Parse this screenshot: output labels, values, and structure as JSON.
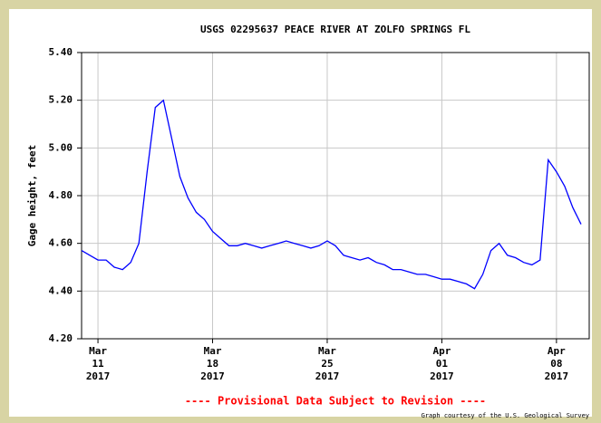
{
  "chart_data": {
    "type": "line",
    "title": "USGS 02295637 PEACE RIVER AT ZOLFO SPRINGS FL",
    "y_label": "Gage height, feet",
    "footer": "---- Provisional Data Subject to Revision ----",
    "credit": "Graph courtesy of the U.S. Geological Survey",
    "color": "#0000ff",
    "grid": true,
    "xlim": [
      "2017-03-10T00:00",
      "2017-04-10T00:00"
    ],
    "xticks": [
      {
        "value": "2017-03-11T00:00",
        "label": [
          "Mar",
          "11",
          "2017"
        ]
      },
      {
        "value": "2017-03-18T00:00",
        "label": [
          "Mar",
          "18",
          "2017"
        ]
      },
      {
        "value": "2017-03-25T00:00",
        "label": [
          "Mar",
          "25",
          "2017"
        ]
      },
      {
        "value": "2017-04-01T00:00",
        "label": [
          "Apr",
          "01",
          "2017"
        ]
      },
      {
        "value": "2017-04-08T00:00",
        "label": [
          "Apr",
          "08",
          "2017"
        ]
      }
    ],
    "ylim": [
      4.2,
      5.4
    ],
    "yticks": [
      {
        "value": 4.2,
        "label": "4.20"
      },
      {
        "value": 4.4,
        "label": "4.40"
      },
      {
        "value": 4.6,
        "label": "4.60"
      },
      {
        "value": 4.8,
        "label": "4.80"
      },
      {
        "value": 5.0,
        "label": "5.00"
      },
      {
        "value": 5.2,
        "label": "5.20"
      },
      {
        "value": 5.4,
        "label": "5.40"
      }
    ],
    "x": [
      "2017-03-10T00:00",
      "2017-03-10T12:00",
      "2017-03-11T00:00",
      "2017-03-11T12:00",
      "2017-03-12T00:00",
      "2017-03-12T12:00",
      "2017-03-13T00:00",
      "2017-03-13T12:00",
      "2017-03-14T00:00",
      "2017-03-14T12:00",
      "2017-03-15T00:00",
      "2017-03-15T12:00",
      "2017-03-16T00:00",
      "2017-03-16T12:00",
      "2017-03-17T00:00",
      "2017-03-17T12:00",
      "2017-03-18T00:00",
      "2017-03-18T12:00",
      "2017-03-19T00:00",
      "2017-03-19T12:00",
      "2017-03-20T00:00",
      "2017-03-20T12:00",
      "2017-03-21T00:00",
      "2017-03-21T12:00",
      "2017-03-22T00:00",
      "2017-03-22T12:00",
      "2017-03-23T00:00",
      "2017-03-23T12:00",
      "2017-03-24T00:00",
      "2017-03-24T12:00",
      "2017-03-25T00:00",
      "2017-03-25T12:00",
      "2017-03-26T00:00",
      "2017-03-26T12:00",
      "2017-03-27T00:00",
      "2017-03-27T12:00",
      "2017-03-28T00:00",
      "2017-03-28T12:00",
      "2017-03-29T00:00",
      "2017-03-29T12:00",
      "2017-03-30T00:00",
      "2017-03-30T12:00",
      "2017-03-31T00:00",
      "2017-03-31T12:00",
      "2017-04-01T00:00",
      "2017-04-01T12:00",
      "2017-04-02T00:00",
      "2017-04-02T12:00",
      "2017-04-03T00:00",
      "2017-04-03T12:00",
      "2017-04-04T00:00",
      "2017-04-04T12:00",
      "2017-04-05T00:00",
      "2017-04-05T12:00",
      "2017-04-06T00:00",
      "2017-04-06T12:00",
      "2017-04-07T00:00",
      "2017-04-07T12:00",
      "2017-04-08T00:00",
      "2017-04-08T12:00",
      "2017-04-09T00:00",
      "2017-04-09T12:00"
    ],
    "values": [
      4.57,
      4.55,
      4.53,
      4.53,
      4.5,
      4.49,
      4.52,
      4.6,
      4.9,
      5.17,
      5.2,
      5.04,
      4.88,
      4.79,
      4.73,
      4.7,
      4.65,
      4.62,
      4.59,
      4.59,
      4.6,
      4.59,
      4.58,
      4.59,
      4.6,
      4.61,
      4.6,
      4.59,
      4.58,
      4.59,
      4.61,
      4.59,
      4.55,
      4.54,
      4.53,
      4.54,
      4.52,
      4.51,
      4.49,
      4.49,
      4.48,
      4.47,
      4.47,
      4.46,
      4.45,
      4.45,
      4.44,
      4.43,
      4.41,
      4.47,
      4.57,
      4.6,
      4.55,
      4.54,
      4.52,
      4.51,
      4.53,
      4.95,
      4.9,
      4.84,
      4.75,
      4.68
    ]
  }
}
